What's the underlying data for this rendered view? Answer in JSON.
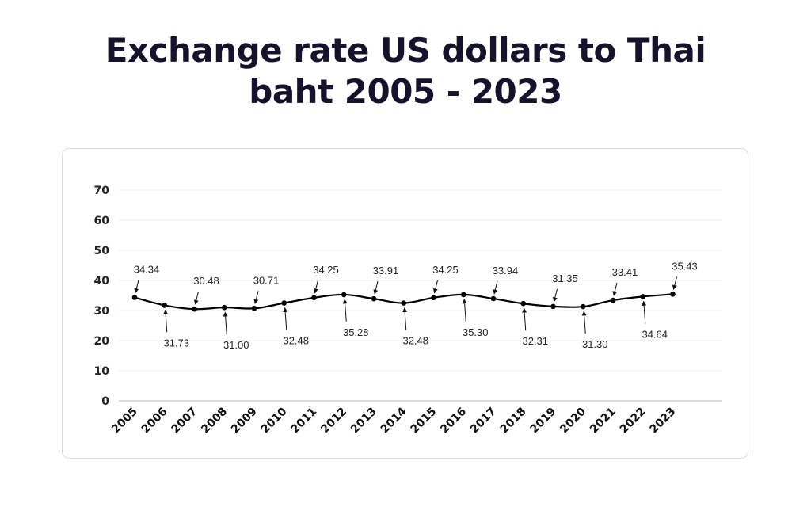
{
  "page": {
    "title_line1": "Exchange rate US dollars to Thai",
    "title_line2": "baht 2005 - 2023"
  },
  "chart_data": {
    "type": "line",
    "title": "Exchange rate US dollars to Thai baht 2005 - 2023",
    "xlabel": "",
    "ylabel": "",
    "categories": [
      "2005",
      "2006",
      "2007",
      "2008",
      "2009",
      "2010",
      "2011",
      "2012",
      "2013",
      "2014",
      "2015",
      "2016",
      "2017",
      "2018",
      "2019",
      "2020",
      "2021",
      "2022",
      "2023"
    ],
    "series": [
      {
        "values": [
          34.34,
          31.73,
          30.48,
          31.0,
          30.71,
          32.48,
          34.25,
          35.28,
          33.91,
          32.48,
          34.25,
          35.3,
          33.94,
          32.31,
          31.35,
          31.3,
          33.41,
          34.64,
          35.43
        ],
        "color": "#000000"
      }
    ],
    "data_labels": [
      "34.34",
      "31.73",
      "30.48",
      "31.00",
      "30.71",
      "32.48",
      "34.25",
      "35.28",
      "33.91",
      "32.48",
      "34.25",
      "35.30",
      "33.94",
      "32.31",
      "31.35",
      "31.30",
      "33.41",
      "34.64",
      "35.43"
    ],
    "label_positions": [
      "above",
      "below",
      "above",
      "below",
      "above",
      "below",
      "above",
      "below",
      "above",
      "below",
      "above",
      "below",
      "above",
      "below",
      "above",
      "below",
      "above",
      "below",
      "above"
    ],
    "yticks": [
      "0",
      "10",
      "20",
      "30",
      "40",
      "50",
      "60",
      "70"
    ],
    "ylim": [
      0,
      70
    ],
    "grid": true,
    "legend": "none"
  }
}
